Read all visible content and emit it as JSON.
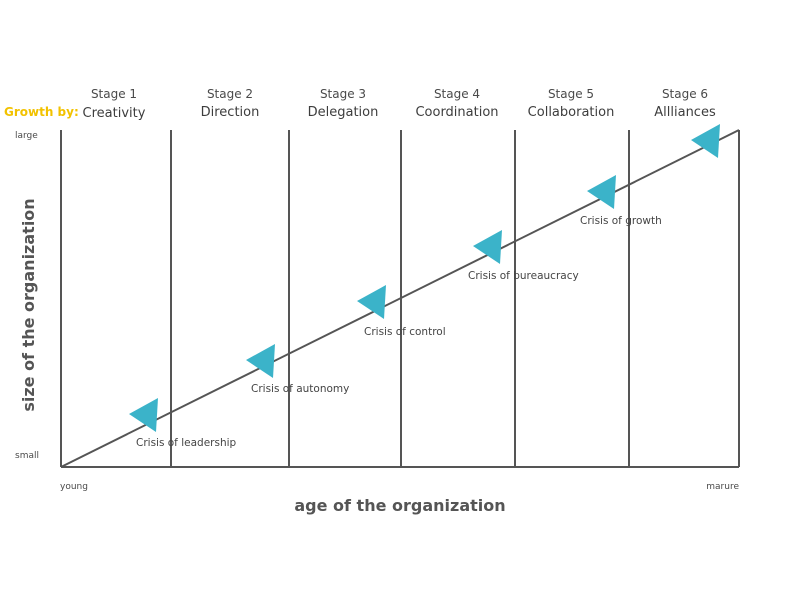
{
  "growth_by_label": "Growth by:",
  "stages": [
    {
      "number": "Stage 1",
      "name": "Creativity"
    },
    {
      "number": "Stage 2",
      "name": "Direction"
    },
    {
      "number": "Stage 3",
      "name": "Delegation"
    },
    {
      "number": "Stage 4",
      "name": "Coordination"
    },
    {
      "number": "Stage 5",
      "name": "Collaboration"
    },
    {
      "number": "Stage 6",
      "name": "Allliances"
    }
  ],
  "crises": [
    "Crisis of leadership",
    "Crisis of autonomy",
    "Crisis of control",
    "Crisis of bureaucracy",
    "Crisis of growth"
  ],
  "y_axis": {
    "title": "size of the organization",
    "top_label": "large",
    "bottom_label": "small"
  },
  "x_axis": {
    "title": "age of the organization",
    "left_label": "young",
    "right_label": "marure"
  },
  "colors": {
    "arrow": "#3bb3c9",
    "line": "#555555",
    "growth_label": "#f2c200"
  }
}
